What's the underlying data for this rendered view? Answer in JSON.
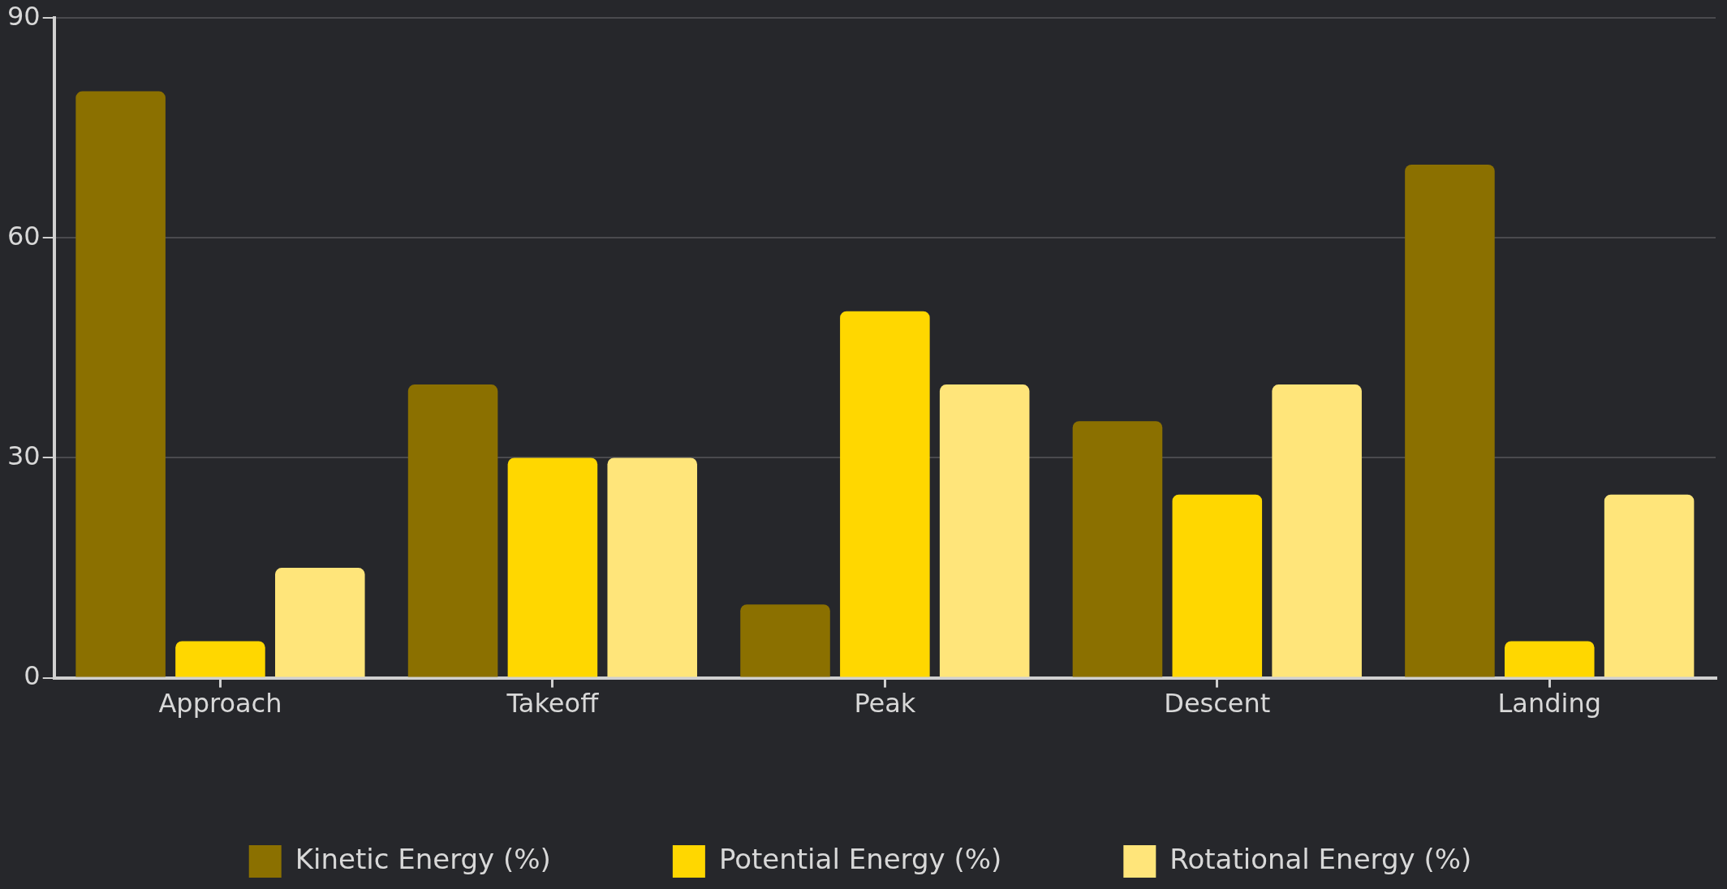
{
  "chart_data": {
    "type": "bar",
    "categories": [
      "Approach",
      "Takeoff",
      "Peak",
      "Descent",
      "Landing"
    ],
    "series": [
      {
        "name": "Kinetic Energy (%)",
        "color": "#8b7000",
        "values": [
          80,
          40,
          10,
          35,
          70
        ]
      },
      {
        "name": "Potential Energy (%)",
        "color": "#ffd700",
        "values": [
          5,
          30,
          50,
          25,
          5
        ]
      },
      {
        "name": "Rotational Energy (%)",
        "color": "#ffe57a",
        "values": [
          15,
          30,
          40,
          40,
          25
        ]
      }
    ],
    "ylim": [
      0,
      90
    ],
    "yticks": [
      0,
      30,
      60,
      90
    ],
    "grid": "y",
    "legend": "bottom"
  }
}
